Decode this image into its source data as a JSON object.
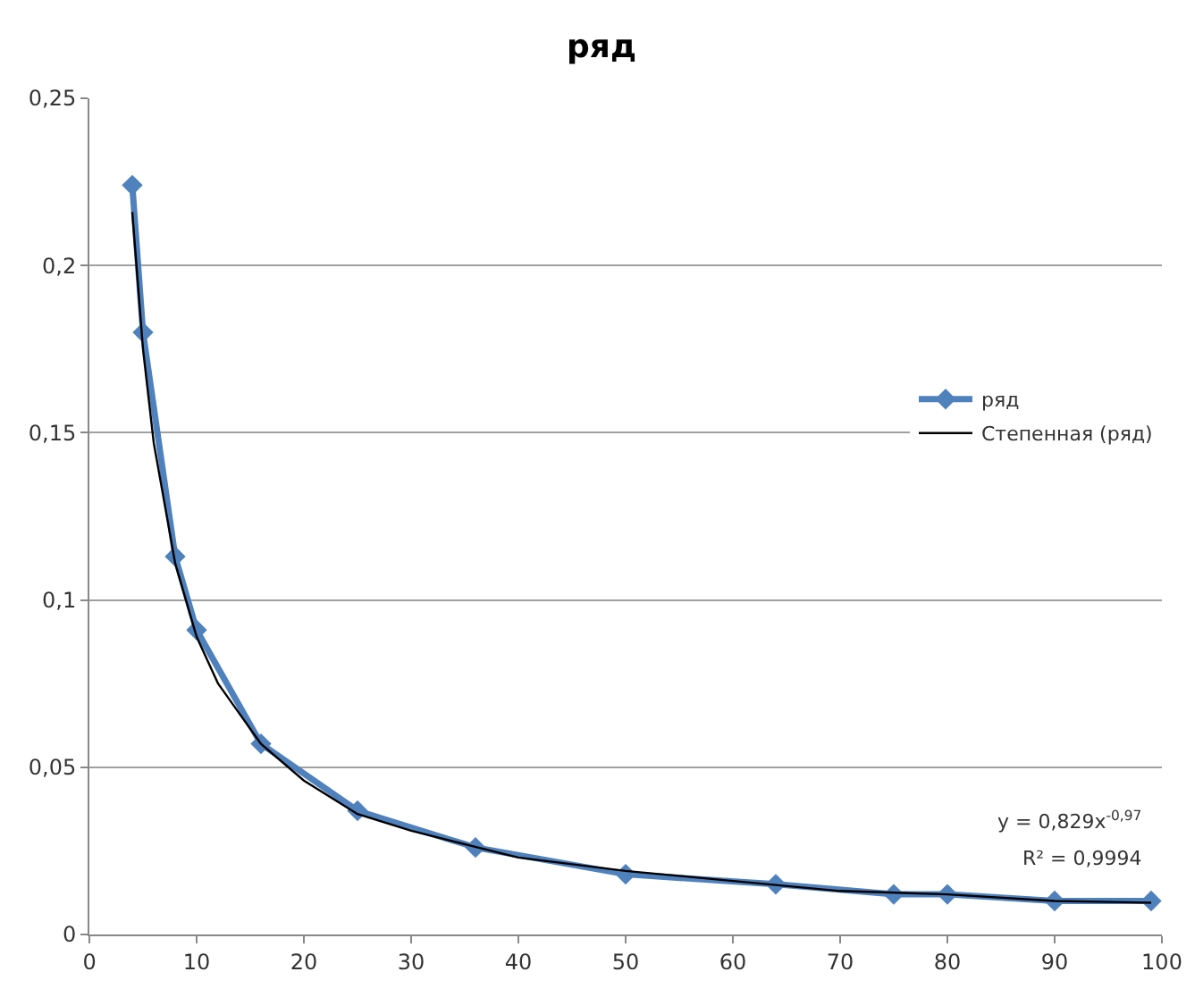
{
  "chart_data": {
    "type": "line",
    "title": "ряд",
    "xlim": [
      0,
      100
    ],
    "xticks": [
      0,
      10,
      20,
      30,
      40,
      50,
      60,
      70,
      80,
      90,
      100
    ],
    "ylim": [
      0,
      0.25
    ],
    "yticks": [
      0,
      {
        "value": 0.05,
        "label": "0,05"
      },
      {
        "value": 0.1,
        "label": "0,1"
      },
      {
        "value": 0.15,
        "label": "0,15"
      },
      {
        "value": 0.2,
        "label": "0,2"
      },
      {
        "value": 0.25,
        "label": "0,25"
      }
    ],
    "grid": "y",
    "legend": "right",
    "marker": "diamond",
    "line_style": "solid",
    "series": [
      {
        "name": "ряд",
        "color": "#4f81bd",
        "x": [
          4,
          5,
          8,
          10,
          16,
          25,
          36,
          50,
          64,
          75,
          80,
          90,
          99
        ],
        "values": [
          0.224,
          0.18,
          0.113,
          0.091,
          0.057,
          0.037,
          0.026,
          0.018,
          0.015,
          0.012,
          0.012,
          0.01,
          0.01
        ]
      },
      {
        "name": "Степенная (ряд)",
        "color": "#000000",
        "type": "line",
        "marker": "none",
        "x": [
          4,
          5,
          6,
          8,
          10,
          12,
          16,
          20,
          25,
          30,
          40,
          50,
          60,
          70,
          80,
          90,
          99
        ],
        "values": [
          0.216,
          0.175,
          0.147,
          0.111,
          0.089,
          0.075,
          0.057,
          0.046,
          0.036,
          0.031,
          0.023,
          0.019,
          0.016,
          0.013,
          0.012,
          0.01,
          0.0095
        ]
      }
    ],
    "annotations": [
      "y = 0,829x$^{-0,97}$",
      "R² = 0,9994"
    ]
  }
}
